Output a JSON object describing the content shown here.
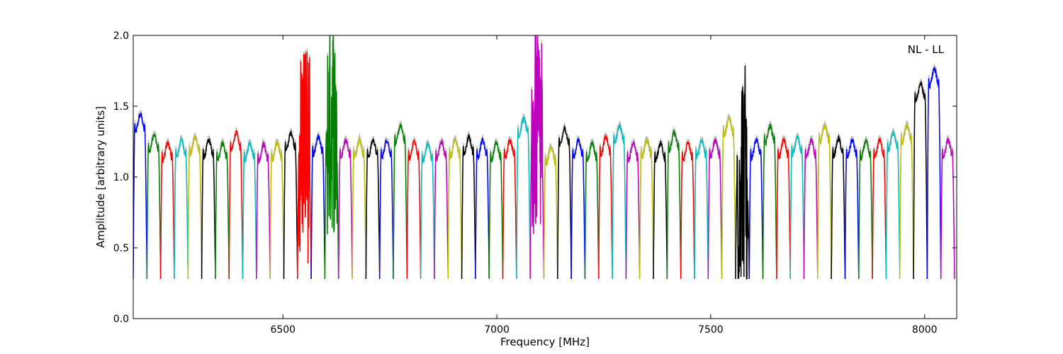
{
  "chart_data": {
    "type": "line",
    "title": "",
    "xlabel": "Frequency [MHz]",
    "ylabel": "Amplitude [arbitrary units]",
    "xlim": [
      6150,
      8075
    ],
    "ylim": [
      0.0,
      2.0
    ],
    "x_ticks": [
      6500,
      7000,
      7500,
      8000
    ],
    "y_ticks": [
      0.0,
      0.5,
      1.0,
      1.5,
      2.0
    ],
    "x_tick_labels": [
      "6500",
      "7000",
      "7500",
      "8000"
    ],
    "y_tick_labels": [
      "0.0",
      "0.5",
      "1.0",
      "1.5",
      "2.0"
    ],
    "annotation": "NL - LL",
    "grid": false,
    "legend": "none",
    "channel_width_mhz": 32,
    "color_cycle": [
      "#0000ff",
      "#008000",
      "#ff0000",
      "#00bfbf",
      "#bfbf00",
      "#000000",
      "#bf00bf"
    ],
    "reference_color": "#bfbfbf",
    "channels": [
      {
        "start": 6150,
        "level": 1.38,
        "color": "#0000ff"
      },
      {
        "start": 6182,
        "level": 1.24,
        "color": "#008000"
      },
      {
        "start": 6214,
        "level": 1.18,
        "color": "#ff0000"
      },
      {
        "start": 6246,
        "level": 1.2,
        "color": "#00bfbf"
      },
      {
        "start": 6278,
        "level": 1.22,
        "color": "#bfbf00"
      },
      {
        "start": 6310,
        "level": 1.2,
        "color": "#000000"
      },
      {
        "start": 6342,
        "level": 1.18,
        "color": "#008000"
      },
      {
        "start": 6374,
        "level": 1.25,
        "color": "#ff0000"
      },
      {
        "start": 6406,
        "level": 1.18,
        "color": "#00bfbf"
      },
      {
        "start": 6438,
        "level": 1.17,
        "color": "#bf00bf"
      },
      {
        "start": 6470,
        "level": 1.18,
        "color": "#bfbf00"
      },
      {
        "start": 6502,
        "level": 1.25,
        "color": "#000000"
      },
      {
        "start": 6534,
        "level": 1.2,
        "color": "#ff0000",
        "noisy": true
      },
      {
        "start": 6566,
        "level": 1.22,
        "color": "#0000ff"
      },
      {
        "start": 6598,
        "level": 1.35,
        "color": "#008000",
        "noisy": true
      },
      {
        "start": 6630,
        "level": 1.2,
        "color": "#bf00bf"
      },
      {
        "start": 6662,
        "level": 1.2,
        "color": "#bfbf00"
      },
      {
        "start": 6694,
        "level": 1.2,
        "color": "#000000"
      },
      {
        "start": 6726,
        "level": 1.2,
        "color": "#0000ff"
      },
      {
        "start": 6758,
        "level": 1.3,
        "color": "#008000"
      },
      {
        "start": 6790,
        "level": 1.19,
        "color": "#ff0000"
      },
      {
        "start": 6822,
        "level": 1.17,
        "color": "#00bfbf"
      },
      {
        "start": 6854,
        "level": 1.19,
        "color": "#bf00bf"
      },
      {
        "start": 6886,
        "level": 1.2,
        "color": "#bfbf00"
      },
      {
        "start": 6918,
        "level": 1.22,
        "color": "#000000"
      },
      {
        "start": 6950,
        "level": 1.2,
        "color": "#0000ff"
      },
      {
        "start": 6982,
        "level": 1.18,
        "color": "#008000"
      },
      {
        "start": 7014,
        "level": 1.2,
        "color": "#ff0000"
      },
      {
        "start": 7046,
        "level": 1.35,
        "color": "#00bfbf"
      },
      {
        "start": 7078,
        "level": 1.3,
        "color": "#bf00bf",
        "noisy": true
      },
      {
        "start": 7110,
        "level": 1.15,
        "color": "#bfbf00"
      },
      {
        "start": 7142,
        "level": 1.28,
        "color": "#000000"
      },
      {
        "start": 7174,
        "level": 1.2,
        "color": "#0000ff"
      },
      {
        "start": 7206,
        "level": 1.18,
        "color": "#008000"
      },
      {
        "start": 7238,
        "level": 1.22,
        "color": "#ff0000"
      },
      {
        "start": 7270,
        "level": 1.3,
        "color": "#00bfbf"
      },
      {
        "start": 7302,
        "level": 1.18,
        "color": "#bf00bf"
      },
      {
        "start": 7334,
        "level": 1.2,
        "color": "#bfbf00"
      },
      {
        "start": 7366,
        "level": 1.18,
        "color": "#000000"
      },
      {
        "start": 7398,
        "level": 1.25,
        "color": "#008000"
      },
      {
        "start": 7430,
        "level": 1.18,
        "color": "#ff0000"
      },
      {
        "start": 7462,
        "level": 1.2,
        "color": "#00bfbf"
      },
      {
        "start": 7494,
        "level": 1.2,
        "color": "#bf00bf"
      },
      {
        "start": 7526,
        "level": 1.35,
        "color": "#bfbf00"
      },
      {
        "start": 7558,
        "level": 1.0,
        "color": "#000000",
        "noisy": true
      },
      {
        "start": 7590,
        "level": 1.2,
        "color": "#0000ff"
      },
      {
        "start": 7622,
        "level": 1.3,
        "color": "#008000"
      },
      {
        "start": 7654,
        "level": 1.2,
        "color": "#ff0000"
      },
      {
        "start": 7686,
        "level": 1.22,
        "color": "#00bfbf"
      },
      {
        "start": 7718,
        "level": 1.2,
        "color": "#bf00bf"
      },
      {
        "start": 7750,
        "level": 1.3,
        "color": "#bfbf00"
      },
      {
        "start": 7782,
        "level": 1.21,
        "color": "#000000"
      },
      {
        "start": 7814,
        "level": 1.2,
        "color": "#0000ff"
      },
      {
        "start": 7846,
        "level": 1.19,
        "color": "#008000"
      },
      {
        "start": 7878,
        "level": 1.2,
        "color": "#ff0000"
      },
      {
        "start": 7910,
        "level": 1.25,
        "color": "#00bfbf"
      },
      {
        "start": 7942,
        "level": 1.3,
        "color": "#bfbf00"
      },
      {
        "start": 7974,
        "level": 1.6,
        "color": "#000000"
      },
      {
        "start": 8006,
        "level": 1.7,
        "color": "#0000ff"
      },
      {
        "start": 8038,
        "level": 1.2,
        "color": "#bf00bf"
      }
    ]
  }
}
